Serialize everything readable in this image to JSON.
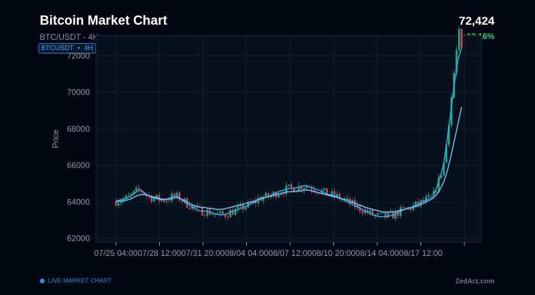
{
  "header": {
    "title": "Bitcoin Market Chart",
    "subtitle": "BTC/USDT - 4H",
    "badge_symbol": "BTCUSDT",
    "badge_sep": "•",
    "badge_interval": "4H",
    "price": "72,424",
    "change": "+13.16%"
  },
  "footer": {
    "live_label": "LIVE MARKET CHART",
    "brand": "ZedArz.com"
  },
  "colors": {
    "up": "#19b37a",
    "down": "#e0405f",
    "ma_fast": "#27b3ff",
    "ma_slow": "#7fc8ff",
    "plot_bg": "#07111d",
    "grid": "#13202e",
    "axis": "#8f9bab"
  },
  "chart_data": {
    "type": "candlestick",
    "ylabel": "Price",
    "xlabel": "",
    "ylim": [
      61800,
      73100
    ],
    "yticks": [
      62000,
      64000,
      66000,
      68000,
      70000,
      72000
    ],
    "xticks": [
      "07/25 04:00",
      "07/28 12:00",
      "07/31 20:00",
      "08/04 04:00",
      "08/07 12:00",
      "08/10 20:00",
      "08/14 04:00",
      "08/17 12:00",
      ""
    ],
    "grid": true,
    "candle_count": 137,
    "series": [
      {
        "name": "",
        "kind": "ma_fast",
        "values": [
          64050,
          64100,
          64150,
          64200,
          64300,
          64450,
          64600,
          64650,
          64500,
          64350,
          64250,
          64200,
          64150,
          64100,
          64150,
          64200,
          64300,
          64300,
          64200,
          64050,
          63900,
          63800,
          63650,
          63550,
          63500,
          63500,
          63450,
          63400,
          63350,
          63300,
          63300,
          63350,
          63450,
          63500,
          63550,
          63650,
          63750,
          63800,
          63900,
          64000,
          64150,
          64250,
          64250,
          64300,
          64400,
          64500,
          64600,
          64650,
          64700,
          64750,
          64750,
          64800,
          64850,
          64900,
          64850,
          64800,
          64700,
          64650,
          64550,
          64450,
          64400,
          64350,
          64300,
          64200,
          64100,
          64000,
          63900,
          63800,
          63700,
          63600,
          63500,
          63400,
          63300,
          63250,
          63200,
          63200,
          63200,
          63250,
          63300,
          63400,
          63500,
          63600,
          63650,
          63700,
          63800,
          63900,
          64000,
          64100,
          64200,
          64300,
          64800,
          65400,
          66100,
          67500,
          69000,
          70500,
          71800,
          72424
        ]
      },
      {
        "name": "",
        "kind": "ma_slow",
        "values": [
          64000,
          64050,
          64050,
          64100,
          64150,
          64250,
          64350,
          64400,
          64400,
          64350,
          64300,
          64250,
          64200,
          64150,
          64150,
          64150,
          64200,
          64250,
          64200,
          64100,
          64000,
          63900,
          63800,
          63750,
          63700,
          63700,
          63650,
          63650,
          63600,
          63600,
          63600,
          63650,
          63700,
          63750,
          63800,
          63850,
          63900,
          63950,
          64000,
          64050,
          64150,
          64200,
          64250,
          64300,
          64350,
          64400,
          64450,
          64500,
          64550,
          64550,
          64600,
          64600,
          64600,
          64650,
          64650,
          64600,
          64550,
          64500,
          64450,
          64400,
          64350,
          64300,
          64250,
          64200,
          64150,
          64100,
          64000,
          63950,
          63850,
          63800,
          63700,
          63650,
          63600,
          63550,
          63500,
          63450,
          63450,
          63450,
          63450,
          63500,
          63550,
          63600,
          63650,
          63700,
          63750,
          63800,
          63900,
          64000,
          64100,
          64200,
          64400,
          64700,
          65100,
          65700,
          66500,
          67400,
          68300,
          69200
        ]
      }
    ]
  }
}
